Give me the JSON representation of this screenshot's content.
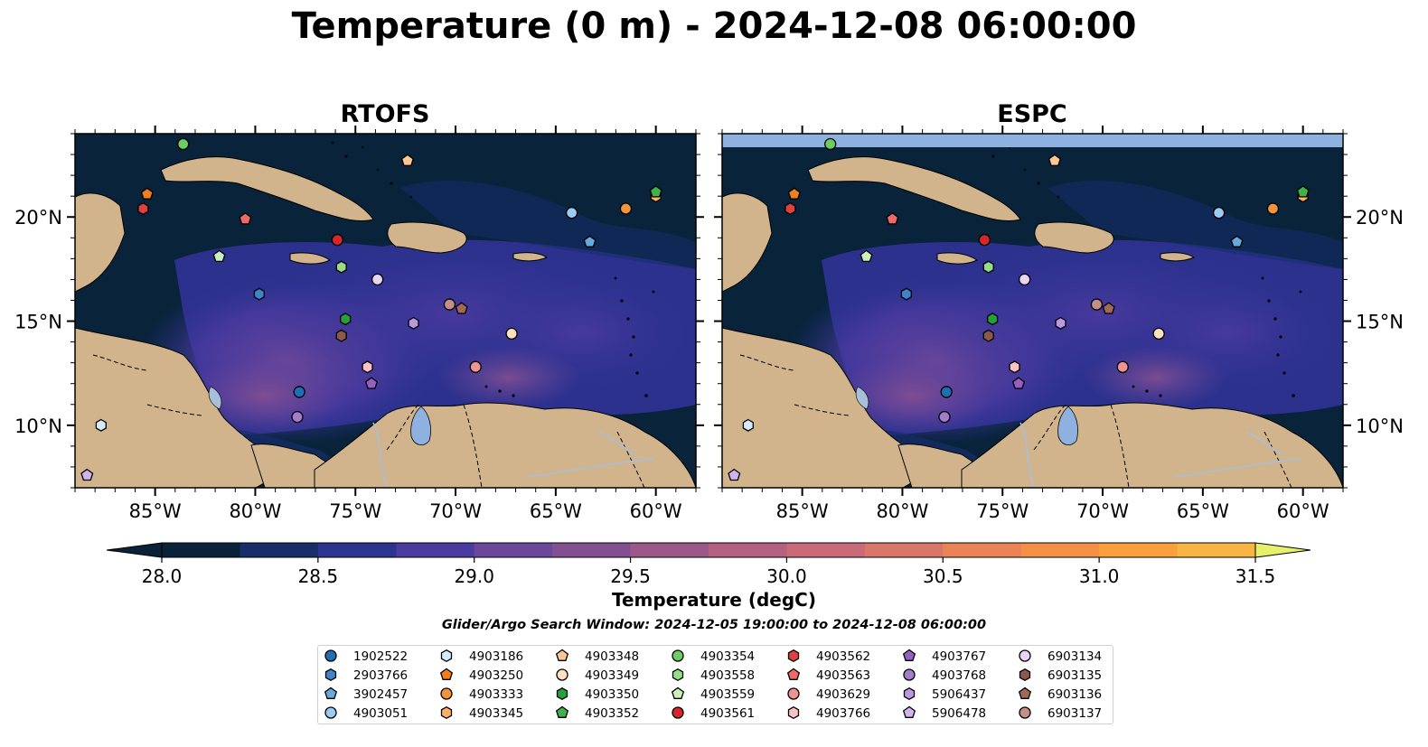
{
  "title": "Temperature (0 m) - 2024-12-08 06:00:00",
  "panels": [
    {
      "title": "RTOFS"
    },
    {
      "title": "ESPC"
    }
  ],
  "map": {
    "lon_range": [
      -89,
      -58
    ],
    "lat_range": [
      7,
      24
    ],
    "lon_ticks": [
      "85°W",
      "80°W",
      "75°W",
      "70°W",
      "65°W",
      "60°W"
    ],
    "lat_ticks": [
      "20°N",
      "15°N",
      "10°N"
    ],
    "land_color": "#d2b48c",
    "ocean_dark": "#08233a",
    "lake_color": "#8fb1e0",
    "espc_top_band_color": "#8fb1e0"
  },
  "colorbar": {
    "label": "Temperature (degC)",
    "min": 28.0,
    "max": 31.5,
    "step": 0.25,
    "tick_labels": [
      "28.0",
      "28.5",
      "29.0",
      "29.5",
      "30.0",
      "30.5",
      "31.0",
      "31.5"
    ],
    "colors": [
      "#0a2238",
      "#172e6b",
      "#2d3391",
      "#4b3a9f",
      "#6a479b",
      "#844f91",
      "#9c5889",
      "#b46081",
      "#c86a78",
      "#da7669",
      "#ea8356",
      "#f58f46",
      "#fb9f3d",
      "#f8b544",
      "#f6cf4e",
      "#f2ef5e",
      "#e6f06a"
    ]
  },
  "search_window": "Glider/Argo Search Window: 2024-12-05 19:00:00 to 2024-12-08 06:00:00",
  "floats": [
    {
      "id": "1902522",
      "marker": "circle",
      "color": "#1f6fb4",
      "lon": -77.8,
      "lat": 11.6
    },
    {
      "id": "2903766",
      "marker": "hexagon",
      "color": "#3f84c6",
      "lon": -79.8,
      "lat": 16.3
    },
    {
      "id": "3902457",
      "marker": "pentagon",
      "color": "#67a8de",
      "lon": -63.3,
      "lat": 18.8
    },
    {
      "id": "4903051",
      "marker": "circle",
      "color": "#9ccaf0",
      "lon": -64.2,
      "lat": 20.2
    },
    {
      "id": "4903186",
      "marker": "hexagon",
      "color": "#d6ebfa",
      "lon": -87.7,
      "lat": 10.0
    },
    {
      "id": "4903250",
      "marker": "pentagon",
      "color": "#f07e1e",
      "lon": -85.4,
      "lat": 21.1
    },
    {
      "id": "4903333",
      "marker": "circle",
      "color": "#f5933a",
      "lon": -61.5,
      "lat": 20.4
    },
    {
      "id": "4903345",
      "marker": "hexagon",
      "color": "#fdaf68",
      "lon": -60.0,
      "lat": 21.0
    },
    {
      "id": "4903348",
      "marker": "pentagon",
      "color": "#fcc794",
      "lon": -72.4,
      "lat": 22.7
    },
    {
      "id": "4903349",
      "marker": "circle",
      "color": "#fde0c0",
      "lon": -67.2,
      "lat": 14.4
    },
    {
      "id": "4903350",
      "marker": "hexagon",
      "color": "#23a23a",
      "lon": -75.5,
      "lat": 15.1
    },
    {
      "id": "4903352",
      "marker": "pentagon",
      "color": "#44b048",
      "lon": -60.0,
      "lat": 21.2
    },
    {
      "id": "4903354",
      "marker": "circle",
      "color": "#6ecc64",
      "lon": -83.6,
      "lat": 23.5
    },
    {
      "id": "4903558",
      "marker": "hexagon",
      "color": "#95dd8a",
      "lon": -75.7,
      "lat": 17.6
    },
    {
      "id": "4903559",
      "marker": "pentagon",
      "color": "#c9f0bd",
      "lon": -81.8,
      "lat": 18.1
    },
    {
      "id": "4903561",
      "marker": "circle",
      "color": "#d7262b",
      "lon": -75.9,
      "lat": 18.9
    },
    {
      "id": "4903562",
      "marker": "hexagon",
      "color": "#e2403f",
      "lon": -85.6,
      "lat": 20.4
    },
    {
      "id": "4903563",
      "marker": "pentagon",
      "color": "#ee6a68",
      "lon": -80.5,
      "lat": 19.9
    },
    {
      "id": "4903629",
      "marker": "circle",
      "color": "#f19393",
      "lon": -69.0,
      "lat": 12.8
    },
    {
      "id": "4903766",
      "marker": "hexagon",
      "color": "#fbc2c4",
      "lon": -74.4,
      "lat": 12.8
    },
    {
      "id": "4903767",
      "marker": "pentagon",
      "color": "#9561c0",
      "lon": -74.2,
      "lat": 12.0
    },
    {
      "id": "4903768",
      "marker": "circle",
      "color": "#a47ccc",
      "lon": -77.9,
      "lat": 10.4
    },
    {
      "id": "5906437",
      "marker": "hexagon",
      "color": "#bb99de",
      "lon": -72.1,
      "lat": 14.9
    },
    {
      "id": "5906478",
      "marker": "pentagon",
      "color": "#cfb5ef",
      "lon": -88.4,
      "lat": 7.6
    },
    {
      "id": "6903134",
      "marker": "circle",
      "color": "#ead4f6",
      "lon": -73.9,
      "lat": 17.0
    },
    {
      "id": "6903135",
      "marker": "hexagon",
      "color": "#8c5a4a",
      "lon": -75.7,
      "lat": 14.3
    },
    {
      "id": "6903136",
      "marker": "pentagon",
      "color": "#a0695a",
      "lon": -69.7,
      "lat": 15.6
    },
    {
      "id": "6903137",
      "marker": "circle",
      "color": "#c48f86",
      "lon": -70.3,
      "lat": 15.8
    }
  ]
}
